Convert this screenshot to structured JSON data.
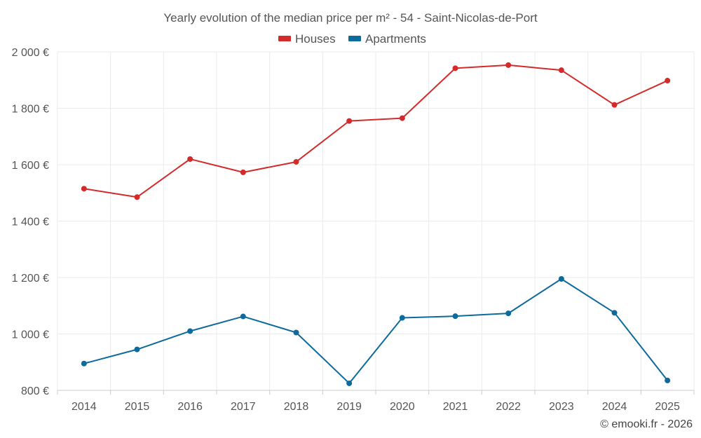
{
  "chart_data": {
    "type": "line",
    "title": "Yearly evolution of the median price per m² - 54 - Saint-Nicolas-de-Port",
    "categories": [
      "2014",
      "2015",
      "2016",
      "2017",
      "2018",
      "2019",
      "2020",
      "2021",
      "2022",
      "2023",
      "2024",
      "2025"
    ],
    "series": [
      {
        "name": "Houses",
        "color": "#d42a2a",
        "values": [
          1515,
          1485,
          1620,
          1573,
          1610,
          1755,
          1765,
          1942,
          1953,
          1935,
          1812,
          1898
        ]
      },
      {
        "name": "Apartments",
        "color": "#0d6a9c",
        "values": [
          895,
          945,
          1010,
          1062,
          1005,
          825,
          1057,
          1063,
          1073,
          1195,
          1075,
          835
        ]
      }
    ],
    "ylim": [
      800,
      2000
    ],
    "yticks": [
      800,
      1000,
      1200,
      1400,
      1600,
      1800,
      2000
    ],
    "ytick_labels": [
      "800 €",
      "1 000 €",
      "1 200 €",
      "1 400 €",
      "1 600 €",
      "1 800 €",
      "2 000 €"
    ],
    "legend_position": "top-center",
    "grid": true
  },
  "credit": "© emooki.fr - 2026"
}
